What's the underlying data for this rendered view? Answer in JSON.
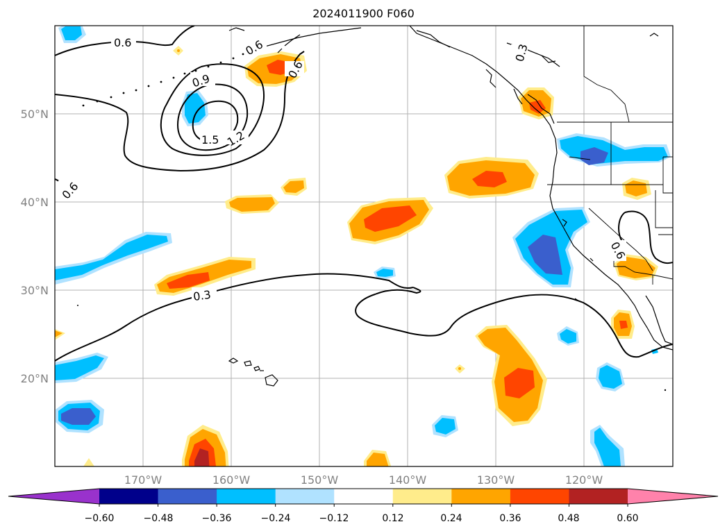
{
  "title": "2024011900 F060",
  "map": {
    "lon_range": [
      -180,
      -110
    ],
    "lat_range": [
      10,
      60
    ],
    "gridlines": true,
    "lon_ticks": [
      "170°W",
      "160°W",
      "150°W",
      "140°W",
      "130°W",
      "120°W"
    ],
    "lat_ticks": [
      "20°N",
      "30°N",
      "40°N",
      "50°N"
    ],
    "contour_labels": [
      "0.6",
      "0.9",
      "1.5",
      "1.2",
      "0.6",
      "0.6",
      "0.3",
      "0.3",
      "0.6",
      "0.6"
    ]
  },
  "colorbar": {
    "extend": "both",
    "colors": [
      "#9932cc",
      "#00008b",
      "#3a5fcd",
      "#00bfff",
      "#b0e2ff",
      "#ffffff",
      "#ffec8b",
      "#ffa500",
      "#ff4500",
      "#b22222",
      "#ff82ab"
    ],
    "ticks": [
      "−0.60",
      "−0.48",
      "−0.36",
      "−0.24",
      "−0.12",
      "0.12",
      "0.24",
      "0.36",
      "0.48",
      "0.60"
    ]
  }
}
